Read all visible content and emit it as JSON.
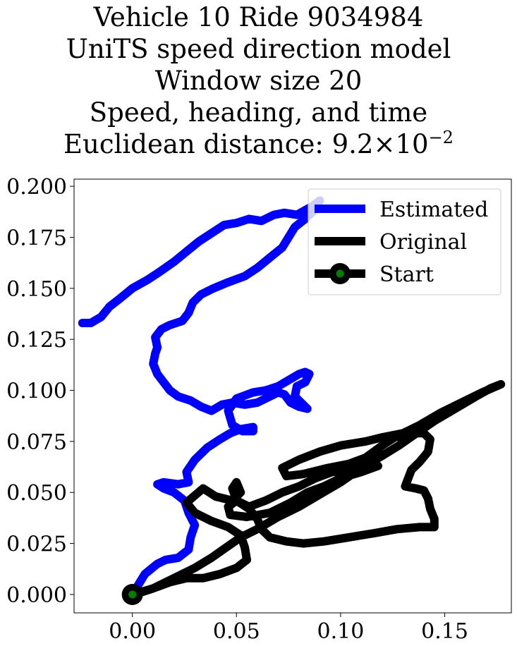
{
  "chart_data": {
    "type": "line",
    "title_lines": [
      "Vehicle 10 Ride 9034984",
      "UniTS speed direction model",
      "Window size 20",
      "Speed, heading, and time"
    ],
    "title_metric_label": "Euclidean distance: 9.2",
    "title_metric_times": "×",
    "title_metric_base": "10",
    "title_metric_exponent": "−2",
    "xlabel": "",
    "ylabel": "",
    "xlim": [
      -0.028,
      0.182
    ],
    "ylim": [
      -0.009,
      0.2035
    ],
    "x_ticks": [
      0.0,
      0.05,
      0.1,
      0.15
    ],
    "x_tick_labels": [
      "0.00",
      "0.05",
      "0.10",
      "0.15"
    ],
    "y_ticks": [
      0.0,
      0.025,
      0.05,
      0.075,
      0.1,
      0.125,
      0.15,
      0.175,
      0.2
    ],
    "y_tick_labels": [
      "0.000",
      "0.025",
      "0.050",
      "0.075",
      "0.100",
      "0.125",
      "0.150",
      "0.175",
      "0.200"
    ],
    "grid": false,
    "legend_position": "top-right",
    "series": [
      {
        "name": "Estimated",
        "color": "#0000ff",
        "points": [
          [
            0.0,
            0.0
          ],
          [
            0.006,
            0.01
          ],
          [
            0.012,
            0.015
          ],
          [
            0.016,
            0.017
          ],
          [
            0.022,
            0.018
          ],
          [
            0.027,
            0.022
          ],
          [
            0.028,
            0.028
          ],
          [
            0.03,
            0.034
          ],
          [
            0.027,
            0.04
          ],
          [
            0.025,
            0.046
          ],
          [
            0.02,
            0.05
          ],
          [
            0.015,
            0.052
          ],
          [
            0.012,
            0.054
          ],
          [
            0.015,
            0.055
          ],
          [
            0.022,
            0.054
          ],
          [
            0.027,
            0.055
          ],
          [
            0.026,
            0.06
          ],
          [
            0.03,
            0.066
          ],
          [
            0.036,
            0.072
          ],
          [
            0.042,
            0.076
          ],
          [
            0.047,
            0.079
          ],
          [
            0.052,
            0.081
          ],
          [
            0.058,
            0.082
          ],
          [
            0.058,
            0.08
          ],
          [
            0.053,
            0.08
          ],
          [
            0.048,
            0.083
          ],
          [
            0.046,
            0.09
          ],
          [
            0.05,
            0.096
          ],
          [
            0.058,
            0.099
          ],
          [
            0.064,
            0.1
          ],
          [
            0.07,
            0.102
          ],
          [
            0.075,
            0.105
          ],
          [
            0.08,
            0.108
          ],
          [
            0.083,
            0.109
          ],
          [
            0.085,
            0.108
          ],
          [
            0.083,
            0.104
          ],
          [
            0.079,
            0.102
          ],
          [
            0.078,
            0.097
          ],
          [
            0.082,
            0.093
          ],
          [
            0.084,
            0.091
          ],
          [
            0.08,
            0.092
          ],
          [
            0.076,
            0.094
          ],
          [
            0.073,
            0.098
          ],
          [
            0.07,
            0.099
          ],
          [
            0.066,
            0.097
          ],
          [
            0.06,
            0.094
          ],
          [
            0.054,
            0.093
          ],
          [
            0.048,
            0.094
          ],
          [
            0.043,
            0.093
          ],
          [
            0.038,
            0.09
          ],
          [
            0.033,
            0.092
          ],
          [
            0.028,
            0.095
          ],
          [
            0.022,
            0.097
          ],
          [
            0.018,
            0.1
          ],
          [
            0.015,
            0.104
          ],
          [
            0.012,
            0.108
          ],
          [
            0.01,
            0.113
          ],
          [
            0.011,
            0.118
          ],
          [
            0.012,
            0.121
          ],
          [
            0.011,
            0.126
          ],
          [
            0.014,
            0.13
          ],
          [
            0.018,
            0.132
          ],
          [
            0.024,
            0.134
          ],
          [
            0.027,
            0.138
          ],
          [
            0.029,
            0.143
          ],
          [
            0.033,
            0.147
          ],
          [
            0.039,
            0.15
          ],
          [
            0.046,
            0.153
          ],
          [
            0.054,
            0.156
          ],
          [
            0.06,
            0.16
          ],
          [
            0.066,
            0.165
          ],
          [
            0.072,
            0.17
          ],
          [
            0.075,
            0.175
          ],
          [
            0.078,
            0.18
          ],
          [
            0.083,
            0.184
          ],
          [
            0.087,
            0.188
          ],
          [
            0.09,
            0.193
          ],
          [
            0.086,
            0.19
          ],
          [
            0.079,
            0.186
          ],
          [
            0.073,
            0.187
          ],
          [
            0.068,
            0.186
          ],
          [
            0.062,
            0.183
          ],
          [
            0.056,
            0.184
          ],
          [
            0.05,
            0.182
          ],
          [
            0.044,
            0.181
          ],
          [
            0.038,
            0.177
          ],
          [
            0.032,
            0.173
          ],
          [
            0.026,
            0.168
          ],
          [
            0.02,
            0.163
          ],
          [
            0.013,
            0.158
          ],
          [
            0.007,
            0.154
          ],
          [
            0.0,
            0.15
          ],
          [
            -0.006,
            0.145
          ],
          [
            -0.011,
            0.141
          ],
          [
            -0.015,
            0.136
          ],
          [
            -0.02,
            0.133
          ],
          [
            -0.024,
            0.133
          ]
        ]
      },
      {
        "name": "Original",
        "color": "#000000",
        "points": [
          [
            0.0,
            0.0
          ],
          [
            0.01,
            0.003
          ],
          [
            0.02,
            0.008
          ],
          [
            0.03,
            0.013
          ],
          [
            0.038,
            0.018
          ],
          [
            0.045,
            0.023
          ],
          [
            0.052,
            0.028
          ],
          [
            0.06,
            0.032
          ],
          [
            0.07,
            0.038
          ],
          [
            0.08,
            0.043
          ],
          [
            0.09,
            0.049
          ],
          [
            0.1,
            0.055
          ],
          [
            0.11,
            0.062
          ],
          [
            0.12,
            0.068
          ],
          [
            0.128,
            0.073
          ],
          [
            0.135,
            0.078
          ],
          [
            0.145,
            0.085
          ],
          [
            0.155,
            0.091
          ],
          [
            0.165,
            0.097
          ],
          [
            0.172,
            0.101
          ],
          [
            0.177,
            0.103
          ],
          [
            0.168,
            0.099
          ],
          [
            0.158,
            0.094
          ],
          [
            0.148,
            0.089
          ],
          [
            0.138,
            0.083
          ],
          [
            0.13,
            0.079
          ],
          [
            0.12,
            0.077
          ],
          [
            0.112,
            0.075
          ],
          [
            0.1,
            0.073
          ],
          [
            0.09,
            0.07
          ],
          [
            0.08,
            0.066
          ],
          [
            0.072,
            0.062
          ],
          [
            0.074,
            0.058
          ],
          [
            0.082,
            0.059
          ],
          [
            0.094,
            0.062
          ],
          [
            0.104,
            0.064
          ],
          [
            0.112,
            0.067
          ],
          [
            0.12,
            0.073
          ],
          [
            0.126,
            0.077
          ],
          [
            0.134,
            0.079
          ],
          [
            0.14,
            0.079
          ],
          [
            0.143,
            0.076
          ],
          [
            0.142,
            0.07
          ],
          [
            0.138,
            0.065
          ],
          [
            0.134,
            0.061
          ],
          [
            0.131,
            0.053
          ],
          [
            0.136,
            0.052
          ],
          [
            0.14,
            0.051
          ],
          [
            0.142,
            0.047
          ],
          [
            0.143,
            0.042
          ],
          [
            0.145,
            0.037
          ],
          [
            0.145,
            0.033
          ],
          [
            0.138,
            0.033
          ],
          [
            0.127,
            0.032
          ],
          [
            0.116,
            0.03
          ],
          [
            0.104,
            0.028
          ],
          [
            0.092,
            0.026
          ],
          [
            0.082,
            0.025
          ],
          [
            0.074,
            0.026
          ],
          [
            0.066,
            0.028
          ],
          [
            0.062,
            0.032
          ],
          [
            0.06,
            0.037
          ],
          [
            0.056,
            0.042
          ],
          [
            0.05,
            0.046
          ],
          [
            0.046,
            0.043
          ],
          [
            0.047,
            0.039
          ],
          [
            0.055,
            0.038
          ],
          [
            0.066,
            0.04
          ],
          [
            0.076,
            0.045
          ],
          [
            0.084,
            0.05
          ],
          [
            0.092,
            0.053
          ],
          [
            0.1,
            0.057
          ],
          [
            0.11,
            0.06
          ],
          [
            0.118,
            0.063
          ],
          [
            0.112,
            0.062
          ],
          [
            0.104,
            0.061
          ],
          [
            0.096,
            0.06
          ],
          [
            0.088,
            0.057
          ],
          [
            0.08,
            0.053
          ],
          [
            0.072,
            0.05
          ],
          [
            0.064,
            0.046
          ],
          [
            0.056,
            0.043
          ],
          [
            0.05,
            0.046
          ],
          [
            0.048,
            0.052
          ],
          [
            0.05,
            0.055
          ],
          [
            0.052,
            0.05
          ],
          [
            0.048,
            0.046
          ],
          [
            0.04,
            0.048
          ],
          [
            0.034,
            0.052
          ],
          [
            0.026,
            0.045
          ],
          [
            0.03,
            0.04
          ],
          [
            0.038,
            0.036
          ],
          [
            0.046,
            0.033
          ],
          [
            0.052,
            0.029
          ],
          [
            0.054,
            0.023
          ],
          [
            0.055,
            0.017
          ],
          [
            0.05,
            0.013
          ],
          [
            0.042,
            0.01
          ],
          [
            0.034,
            0.008
          ],
          [
            0.026,
            0.008
          ],
          [
            0.018,
            0.006
          ],
          [
            0.01,
            0.003
          ],
          [
            0.004,
            0.001
          ]
        ]
      }
    ],
    "start": {
      "name": "Start",
      "x": 0.0,
      "y": 0.0,
      "color": "#000000",
      "inner_color": "#008000"
    }
  }
}
